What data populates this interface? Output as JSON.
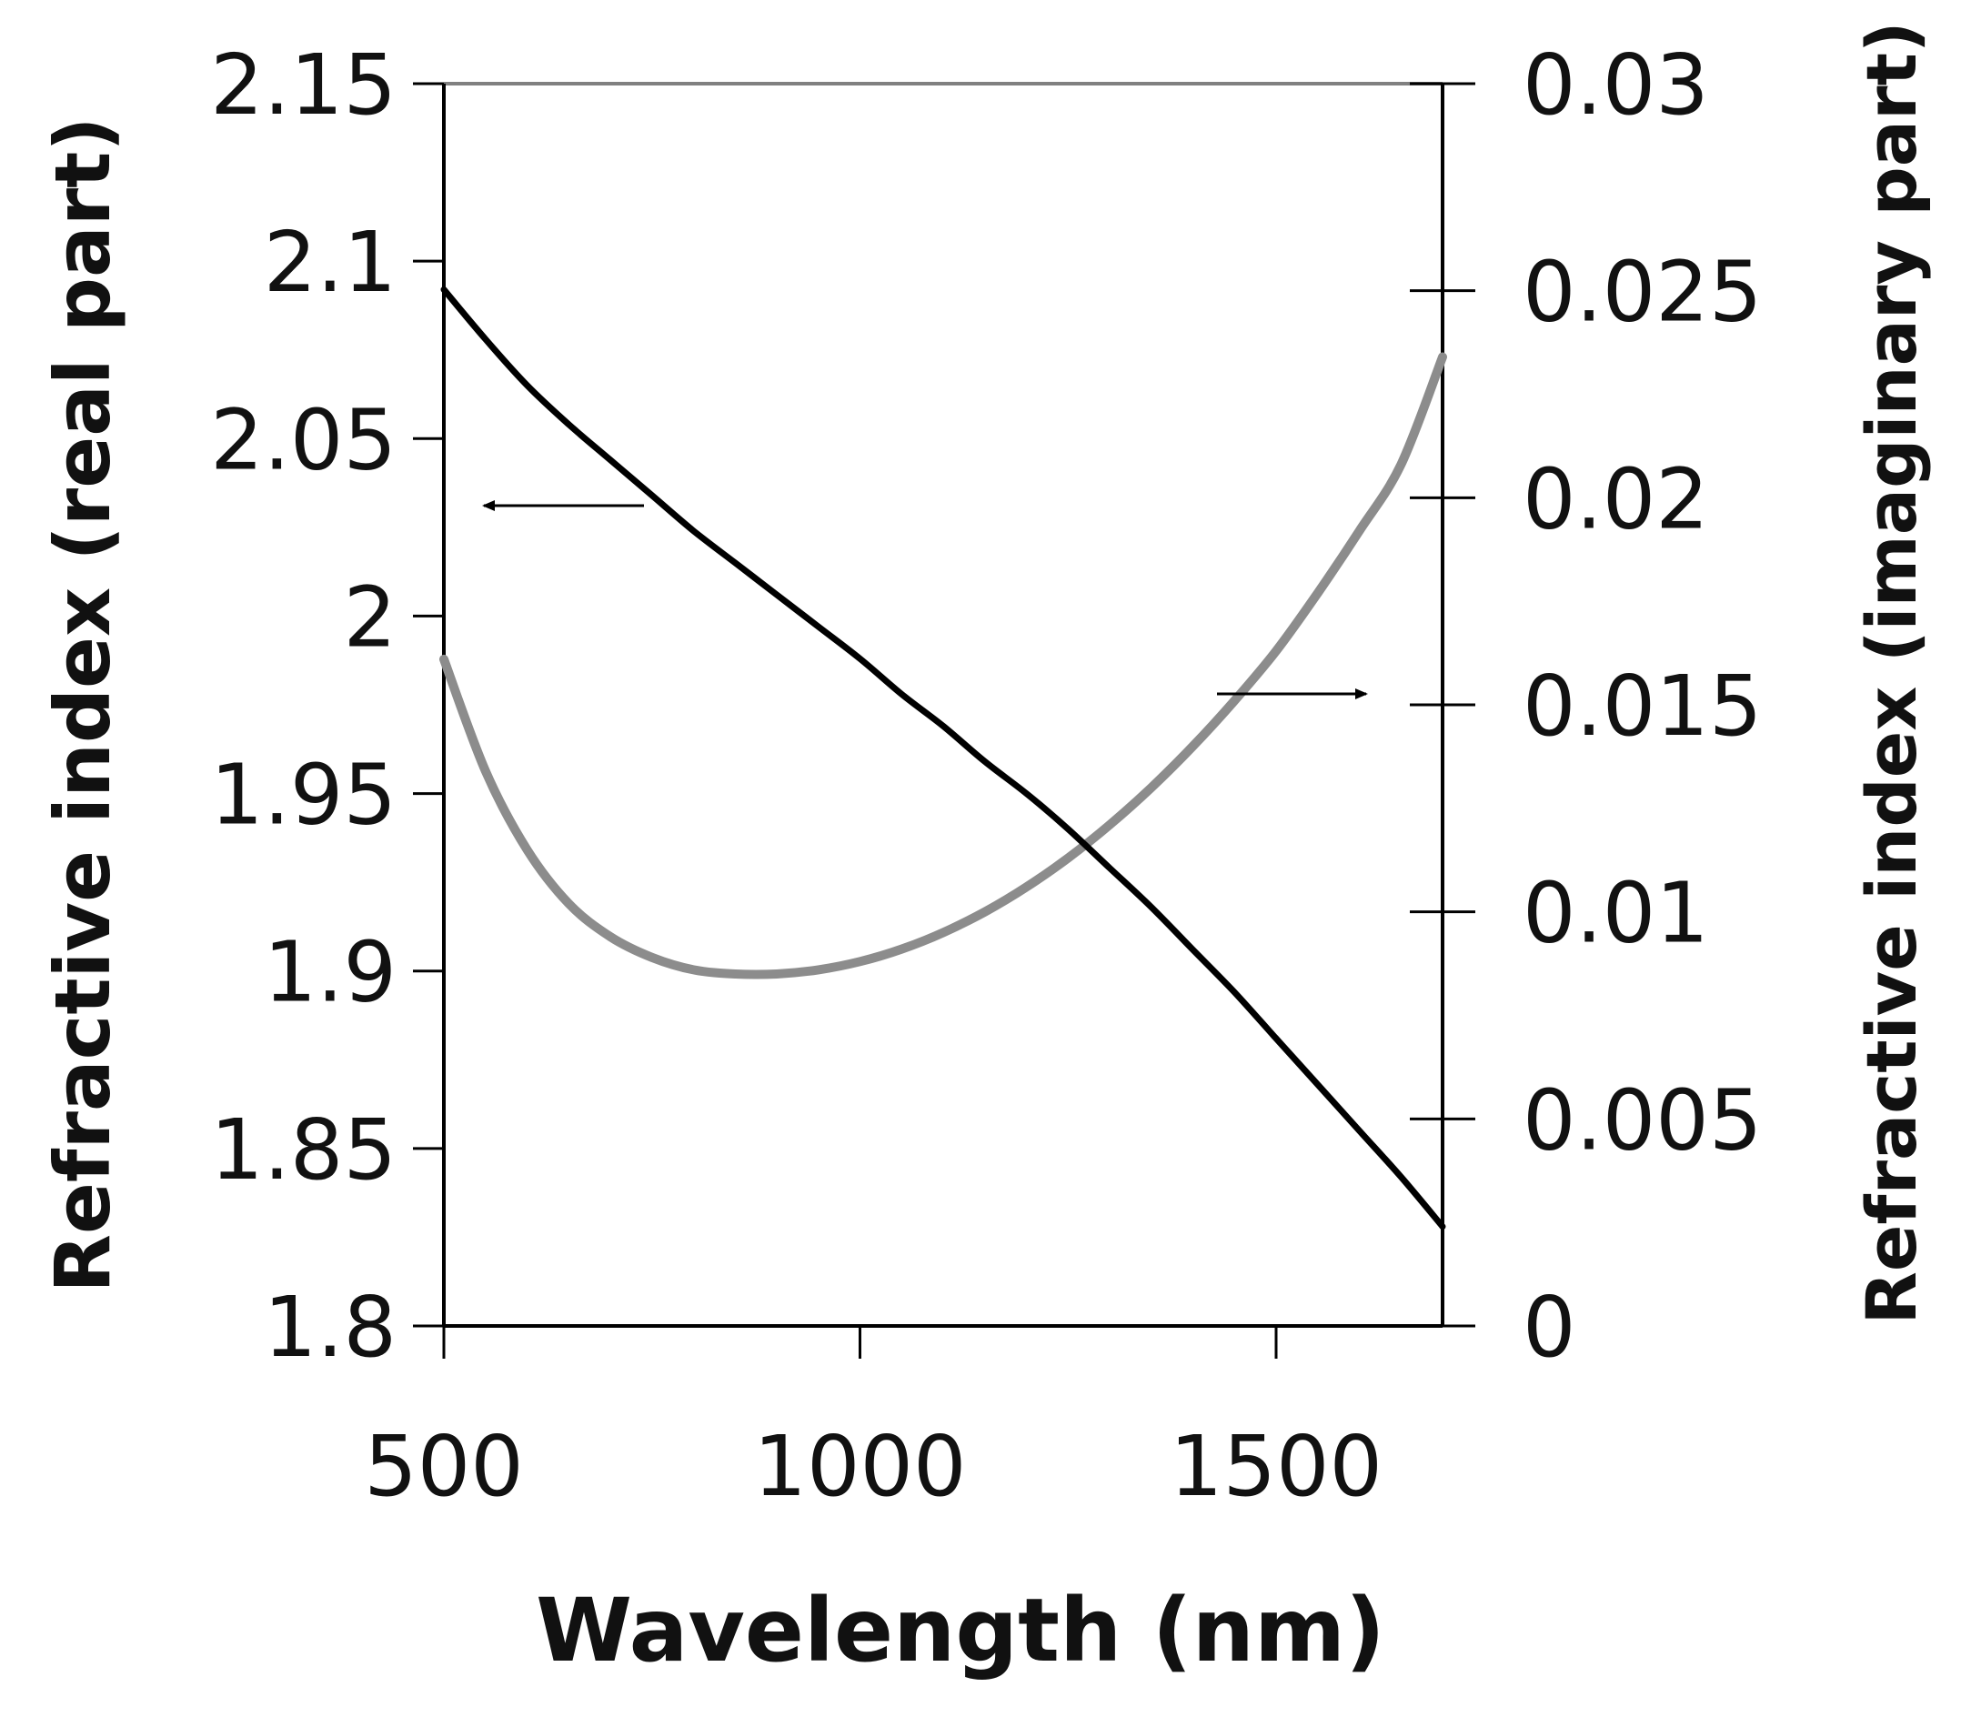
{
  "chart_data": {
    "type": "line",
    "title": "",
    "xlabel": "Wavelength (nm)",
    "ylabel": "Refractive index (real part)",
    "y2label": "Refractive index (imaginary part)",
    "xlim": [
      500,
      1700
    ],
    "ylim": [
      1.8,
      2.15
    ],
    "y2lim": [
      0,
      0.03
    ],
    "xticks": [
      500,
      1000,
      1500
    ],
    "xtick_labels": [
      "500",
      "1000",
      "1500"
    ],
    "yticks": [
      1.8,
      1.85,
      1.9,
      1.95,
      2.0,
      2.05,
      2.1,
      2.15
    ],
    "ytick_labels": [
      "1.8",
      "1.85",
      "1.9",
      "1.95",
      "2",
      "2.05",
      "2.1",
      "2.15"
    ],
    "y2ticks": [
      0,
      0.005,
      0.01,
      0.015,
      0.02,
      0.025,
      0.03
    ],
    "y2tick_labels": [
      "0",
      "0.005",
      "0.01",
      "0.015",
      "0.02",
      "0.025",
      "0.03"
    ],
    "grid": false,
    "series": [
      {
        "name": "Real part",
        "axis": "left",
        "color": "#000000",
        "x": [
          500,
          550,
          600,
          650,
          700,
          750,
          800,
          850,
          900,
          950,
          1000,
          1050,
          1100,
          1150,
          1200,
          1250,
          1300,
          1350,
          1400,
          1450,
          1500,
          1550,
          1600,
          1650,
          1700
        ],
        "y": [
          2.092,
          2.078,
          2.065,
          2.054,
          2.044,
          2.034,
          2.024,
          2.015,
          2.006,
          1.997,
          1.988,
          1.978,
          1.969,
          1.959,
          1.95,
          1.94,
          1.929,
          1.918,
          1.906,
          1.894,
          1.881,
          1.868,
          1.855,
          1.842,
          1.828
        ]
      },
      {
        "name": "Imaginary part",
        "axis": "right",
        "color": "#8c8c8c",
        "x": [
          500,
          550,
          600,
          650,
          700,
          750,
          800,
          850,
          900,
          950,
          1000,
          1050,
          1100,
          1150,
          1200,
          1250,
          1300,
          1350,
          1400,
          1450,
          1500,
          1550,
          1600,
          1650,
          1700
        ],
        "y": [
          0.0161,
          0.0134,
          0.0115,
          0.0102,
          0.0094,
          0.0089,
          0.0086,
          0.0085,
          0.0085,
          0.0086,
          0.0088,
          0.0091,
          0.0095,
          0.01,
          0.0106,
          0.0113,
          0.0121,
          0.013,
          0.014,
          0.0151,
          0.0163,
          0.0177,
          0.0192,
          0.0208,
          0.0234
        ]
      }
    ],
    "annotations": [
      {
        "type": "arrow",
        "direction": "left",
        "points_to": "left axis",
        "series": "Real part"
      },
      {
        "type": "arrow",
        "direction": "right",
        "points_to": "right axis",
        "series": "Imaginary part"
      }
    ]
  }
}
